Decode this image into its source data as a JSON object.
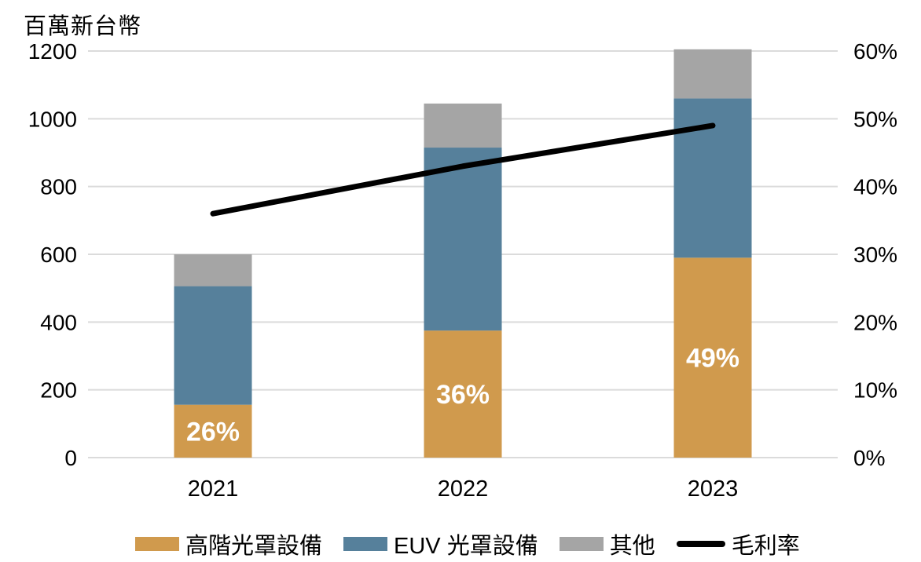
{
  "chart_data": {
    "type": "bar",
    "subtype": "stacked-bars-with-line-overlay",
    "unit_label": "百萬新台幣",
    "categories": [
      "2021",
      "2022",
      "2023"
    ],
    "series": [
      {
        "name": "高階光罩設備",
        "kind": "bar",
        "color": "#D09A4D",
        "axis": "left",
        "values": [
          156,
          375,
          590
        ]
      },
      {
        "name": "EUV 光罩設備",
        "kind": "bar",
        "color": "#56809B",
        "axis": "left",
        "values": [
          350,
          540,
          470
        ]
      },
      {
        "name": "其他",
        "kind": "bar",
        "color": "#A5A5A5",
        "axis": "left",
        "values": [
          94,
          130,
          145
        ]
      },
      {
        "name": "毛利率",
        "kind": "line",
        "color": "#000000",
        "axis": "right",
        "values": [
          36,
          43,
          49
        ],
        "unit": "%"
      }
    ],
    "bar_totals": [
      600,
      1045,
      1205
    ],
    "bar_labels": [
      "26%",
      "36%",
      "49%"
    ],
    "left_axis": {
      "min": 0,
      "max": 1200,
      "step": 200,
      "ticks": [
        "0",
        "200",
        "400",
        "600",
        "800",
        "1000",
        "1200"
      ]
    },
    "right_axis": {
      "min": 0,
      "max": 60,
      "step": 10,
      "ticks": [
        "0%",
        "10%",
        "20%",
        "30%",
        "40%",
        "50%",
        "60%"
      ]
    },
    "grid": true,
    "legend_position": "bottom"
  },
  "colors": {
    "background": "#FFFFFF",
    "gridline": "#DBDBDB",
    "text": "#000000",
    "bar_label_text": "#FFFFFF"
  }
}
